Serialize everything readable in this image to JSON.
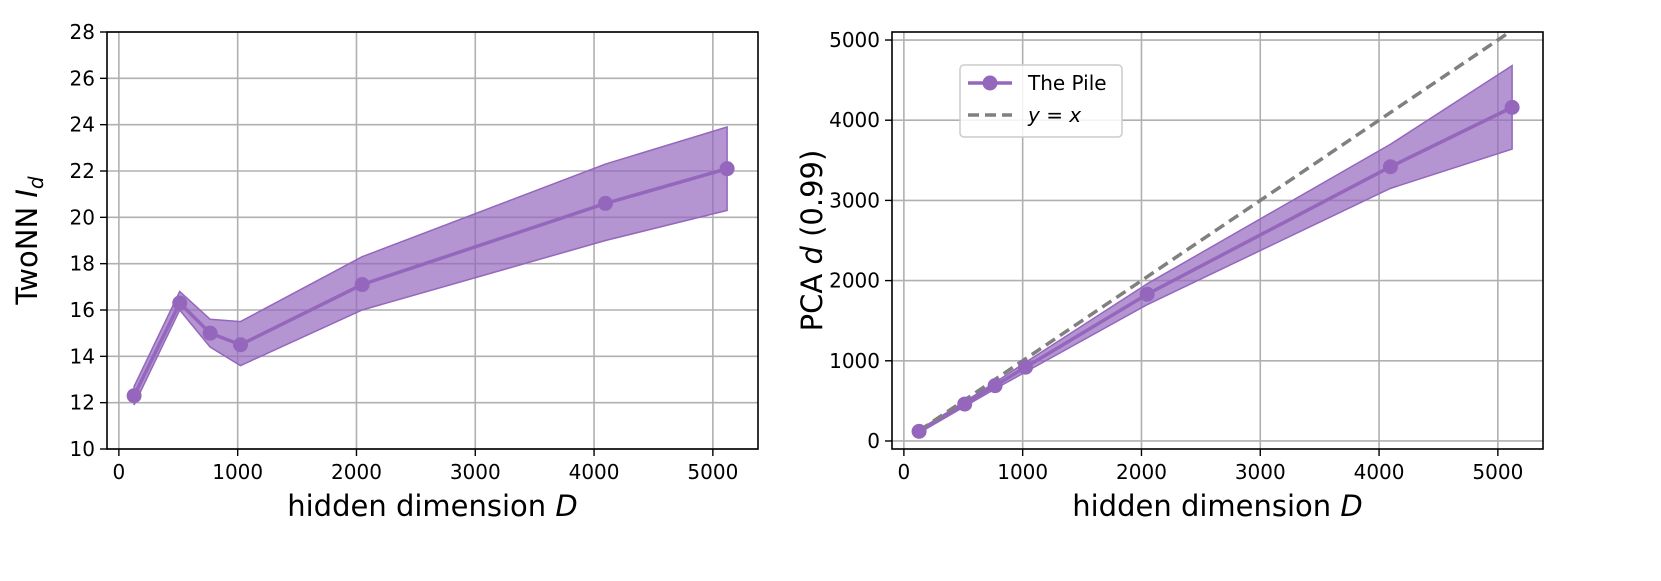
{
  "chart_data": [
    {
      "type": "line",
      "title": "",
      "xlabel": "hidden dimension",
      "xlabel_var": "D",
      "ylabel": "TwoNN",
      "ylabel_var": "I",
      "ylabel_sub": "d",
      "xlim": [
        -100,
        5380
      ],
      "ylim": [
        10,
        28
      ],
      "xticks": [
        0,
        1000,
        2000,
        3000,
        4000,
        5000
      ],
      "yticks": [
        10,
        12,
        14,
        16,
        18,
        20,
        22,
        24,
        26,
        28
      ],
      "grid": true,
      "series": [
        {
          "name": "",
          "color": "#9467bd",
          "x": [
            128,
            512,
            768,
            1024,
            2048,
            4096,
            5120
          ],
          "y": [
            12.3,
            16.3,
            15.0,
            14.5,
            17.1,
            20.6,
            22.1
          ],
          "y_lower": [
            11.9,
            16.0,
            14.4,
            13.6,
            16.0,
            19.0,
            20.3
          ],
          "y_upper": [
            12.7,
            16.8,
            15.6,
            15.5,
            18.3,
            22.3,
            23.9
          ]
        }
      ]
    },
    {
      "type": "line",
      "title": "",
      "xlabel": "hidden dimension",
      "xlabel_var": "D",
      "ylabel": "PCA",
      "ylabel_var": "d",
      "ylabel_suffix": "(0.99)",
      "xlim": [
        -100,
        5380
      ],
      "ylim": [
        -100,
        5100
      ],
      "xticks": [
        0,
        1000,
        2000,
        3000,
        4000,
        5000
      ],
      "yticks": [
        0,
        1000,
        2000,
        3000,
        4000,
        5000
      ],
      "grid": true,
      "legend_position": "upper-left",
      "series": [
        {
          "name": "The Pile",
          "color": "#9467bd",
          "x": [
            128,
            512,
            768,
            1024,
            2048,
            4096,
            5120
          ],
          "y": [
            120,
            460,
            690,
            920,
            1830,
            3420,
            4160
          ],
          "y_lower": [
            100,
            430,
            650,
            860,
            1700,
            3150,
            3640
          ],
          "y_upper": [
            140,
            490,
            730,
            980,
            1960,
            3700,
            4680
          ]
        },
        {
          "name": "y = x",
          "color": "#808080",
          "style": "dashed",
          "x": [
            128,
            5120
          ],
          "y": [
            128,
            5120
          ]
        }
      ]
    }
  ]
}
